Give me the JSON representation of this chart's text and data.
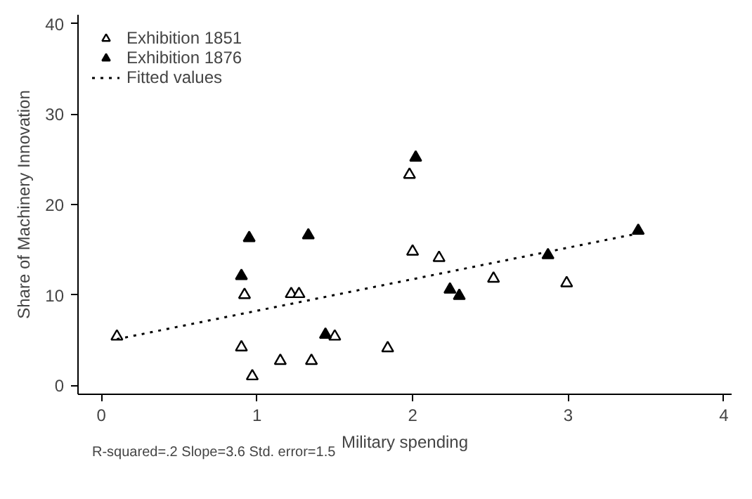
{
  "chart_data": {
    "type": "scatter",
    "xlabel": "Military spending",
    "ylabel": "Share of Machinery Innovation",
    "xlim": [
      -0.15,
      4.05
    ],
    "ylim": [
      -1,
      41
    ],
    "xticks": [
      0,
      1,
      2,
      3,
      4
    ],
    "yticks": [
      0,
      10,
      20,
      30,
      40
    ],
    "grid": false,
    "legend": "top left",
    "annotations": [
      "R-squared=.2    Slope=3.6    Std. error=1.5"
    ],
    "series": [
      {
        "name": "Exhibition 1851",
        "marker": "triangle",
        "color": "#ffffff",
        "x": [
          0.1,
          0.9,
          0.92,
          0.97,
          1.15,
          1.22,
          1.27,
          1.35,
          1.5,
          1.84,
          1.98,
          2.0,
          2.17,
          2.52,
          2.99
        ],
        "values": [
          5.4,
          4.2,
          10,
          1,
          2.7,
          10.1,
          10.1,
          2.7,
          5.4,
          4.1,
          23.3,
          14.8,
          14.1,
          11.8,
          11.3
        ]
      },
      {
        "name": "Exhibition 1876",
        "marker": "triangle",
        "color": "#000000",
        "x": [
          0.9,
          0.95,
          1.33,
          1.44,
          2.02,
          2.24,
          2.3,
          2.87,
          3.45
        ],
        "values": [
          12.1,
          16.3,
          16.6,
          5.6,
          25.2,
          10.6,
          9.9,
          14.4,
          17.1
        ]
      },
      {
        "name": "Fitted values",
        "type": "line",
        "line_style": "dotted",
        "color": "#000000",
        "x": [
          0.1,
          3.45
        ],
        "values": [
          5.1,
          16.8
        ]
      }
    ]
  }
}
